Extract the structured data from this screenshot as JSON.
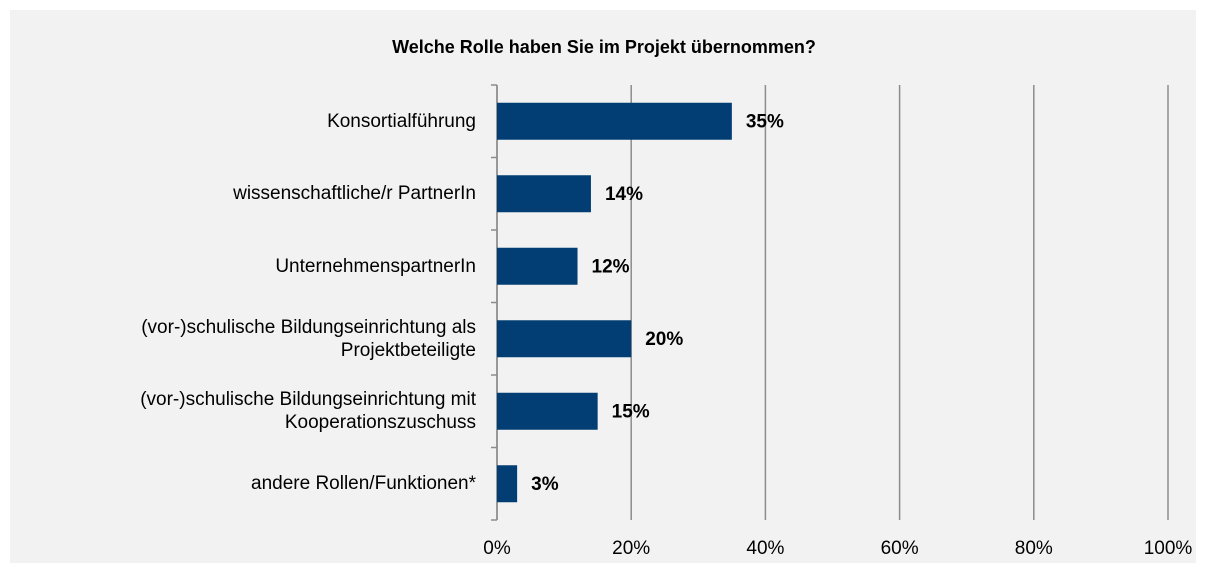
{
  "chart_data": {
    "type": "bar",
    "orientation": "horizontal",
    "title": "Welche Rolle haben Sie im Projekt übernommen?",
    "categories": [
      "Konsortialführung",
      "wissenschaftliche/r PartnerIn",
      "UnternehmenspartnerIn",
      "(vor-)schulische Bildungseinrichtung als Projektbeteiligte",
      "(vor-)schulische Bildungseinrichtung mit Kooperationszuschuss",
      "andere Rollen/Funktionen*"
    ],
    "values": [
      35,
      14,
      12,
      20,
      15,
      3
    ],
    "value_labels": [
      "35%",
      "14%",
      "12%",
      "20%",
      "15%",
      "3%"
    ],
    "color": "#023e73",
    "xlim": [
      0,
      100
    ],
    "xticks": [
      {
        "value": 0,
        "label": "0%"
      },
      {
        "value": 20,
        "label": "20%"
      },
      {
        "value": 40,
        "label": "40%"
      },
      {
        "value": 60,
        "label": "60%"
      },
      {
        "value": 80,
        "label": "80%"
      },
      {
        "value": 100,
        "label": "100%"
      }
    ],
    "grid": true
  }
}
